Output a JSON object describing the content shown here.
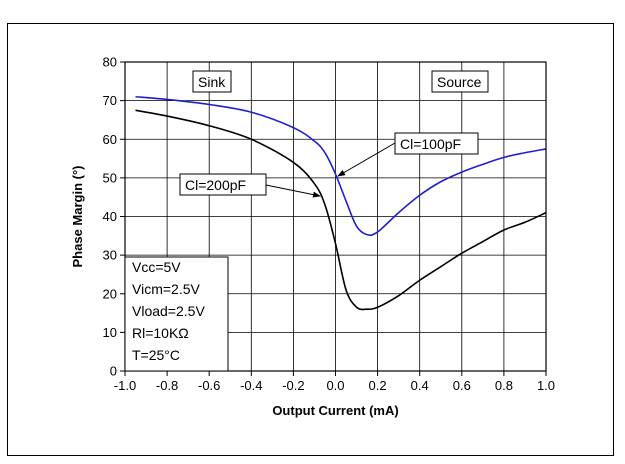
{
  "chart_data": {
    "type": "line",
    "xlabel": "Output Current (mA)",
    "ylabel": "Phase Margin (°)",
    "xlim": [
      -1.0,
      1.0
    ],
    "ylim": [
      0,
      80
    ],
    "grid": true,
    "x_ticks": [
      "-1.0",
      "-0.8",
      "-0.6",
      "-0.4",
      "-0.2",
      "0.0",
      "0.2",
      "0.4",
      "0.6",
      "0.8",
      "1.0"
    ],
    "y_ticks": [
      "0",
      "10",
      "20",
      "30",
      "40",
      "50",
      "60",
      "70",
      "80"
    ],
    "series": [
      {
        "name": "Cl=100pF",
        "color": "#1f1fd0",
        "x": [
          -0.95,
          -0.8,
          -0.6,
          -0.4,
          -0.2,
          -0.1,
          -0.05,
          0.0,
          0.05,
          0.1,
          0.15,
          0.2,
          0.3,
          0.4,
          0.5,
          0.6,
          0.7,
          0.8,
          0.9,
          1.0
        ],
        "y": [
          71,
          70.3,
          69,
          67,
          63,
          59.5,
          56.5,
          51,
          44,
          37.5,
          35.3,
          36,
          41,
          45.5,
          49,
          51.5,
          53.5,
          55.3,
          56.5,
          57.5
        ]
      },
      {
        "name": "Cl=200pF",
        "color": "#000000",
        "x": [
          -0.95,
          -0.8,
          -0.6,
          -0.4,
          -0.2,
          -0.1,
          -0.05,
          0.0,
          0.05,
          0.1,
          0.15,
          0.2,
          0.3,
          0.4,
          0.5,
          0.6,
          0.7,
          0.8,
          0.9,
          1.0
        ],
        "y": [
          67.5,
          66,
          63.5,
          60,
          54,
          48.5,
          43,
          33,
          21,
          16.5,
          16,
          16.5,
          19.5,
          23.5,
          27,
          30.5,
          33.5,
          36.5,
          38.5,
          41
        ]
      }
    ],
    "annotations": {
      "sink": "Sink",
      "source": "Source",
      "cl100": "Cl=100pF",
      "cl200": "Cl=200pF",
      "conditions": [
        "Vcc=5V",
        "Vicm=2.5V",
        "Vload=2.5V",
        "Rl=10KΩ",
        "T=25°C"
      ]
    }
  }
}
